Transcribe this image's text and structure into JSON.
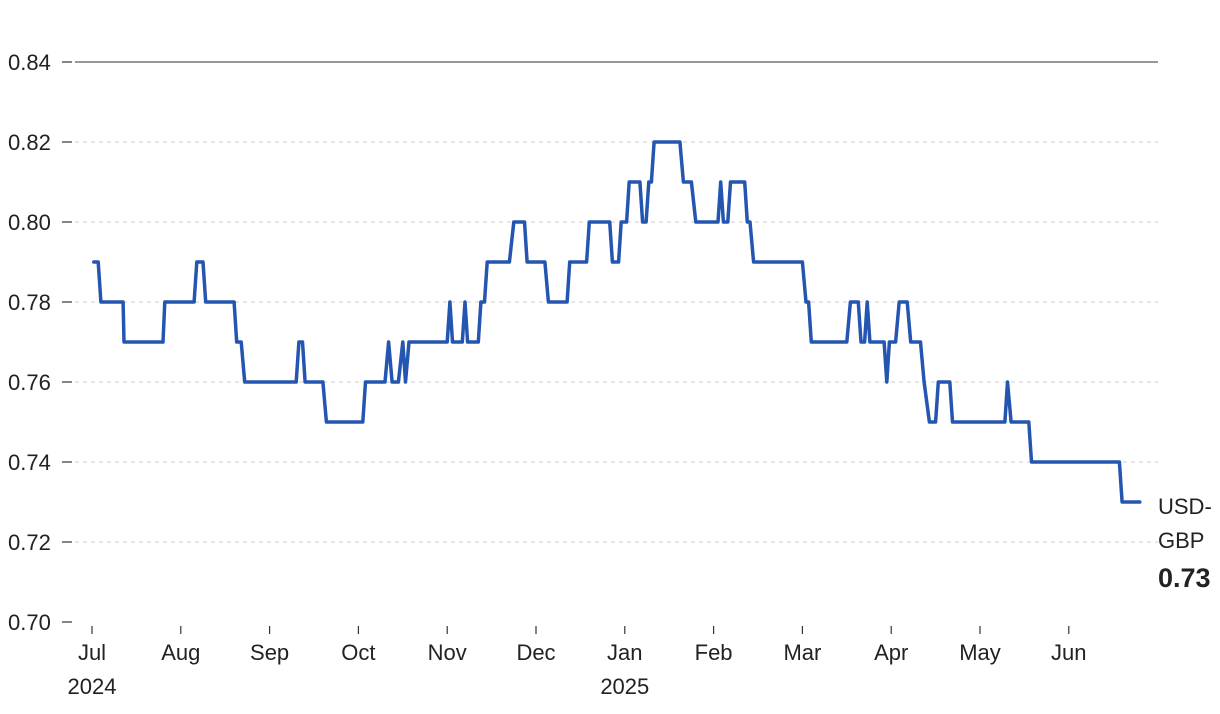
{
  "chart_data": {
    "type": "line",
    "title": "",
    "xlabel": "",
    "ylabel": "",
    "ylim": [
      0.7,
      0.84
    ],
    "yticks": [
      "0.70",
      "0.72",
      "0.74",
      "0.76",
      "0.78",
      "0.80",
      "0.82",
      "0.84"
    ],
    "xlim": [
      0,
      12
    ],
    "xticks": [
      {
        "label": "Jul",
        "year": "2024"
      },
      {
        "label": "Aug",
        "year": ""
      },
      {
        "label": "Sep",
        "year": ""
      },
      {
        "label": "Oct",
        "year": ""
      },
      {
        "label": "Nov",
        "year": ""
      },
      {
        "label": "Dec",
        "year": ""
      },
      {
        "label": "Jan",
        "year": "2025"
      },
      {
        "label": "Feb",
        "year": ""
      },
      {
        "label": "Mar",
        "year": ""
      },
      {
        "label": "Apr",
        "year": ""
      },
      {
        "label": "May",
        "year": ""
      },
      {
        "label": "Jun",
        "year": ""
      }
    ],
    "grid": true,
    "series": [
      {
        "name": "USD-GBP",
        "color": "#2455b0",
        "end_value": "0.73",
        "points": [
          [
            0.02,
            0.79
          ],
          [
            0.07,
            0.79
          ],
          [
            0.1,
            0.78
          ],
          [
            0.35,
            0.78
          ],
          [
            0.36,
            0.77
          ],
          [
            0.8,
            0.77
          ],
          [
            0.82,
            0.78
          ],
          [
            1.15,
            0.78
          ],
          [
            1.18,
            0.79
          ],
          [
            1.25,
            0.79
          ],
          [
            1.28,
            0.78
          ],
          [
            1.6,
            0.78
          ],
          [
            1.63,
            0.77
          ],
          [
            1.68,
            0.77
          ],
          [
            1.72,
            0.76
          ],
          [
            2.3,
            0.76
          ],
          [
            2.33,
            0.77
          ],
          [
            2.37,
            0.77
          ],
          [
            2.4,
            0.76
          ],
          [
            2.6,
            0.76
          ],
          [
            2.64,
            0.75
          ],
          [
            3.05,
            0.75
          ],
          [
            3.08,
            0.76
          ],
          [
            3.3,
            0.76
          ],
          [
            3.34,
            0.77
          ],
          [
            3.38,
            0.76
          ],
          [
            3.45,
            0.76
          ],
          [
            3.5,
            0.77
          ],
          [
            3.53,
            0.76
          ],
          [
            3.57,
            0.77
          ],
          [
            4.0,
            0.77
          ],
          [
            4.03,
            0.78
          ],
          [
            4.06,
            0.77
          ],
          [
            4.17,
            0.77
          ],
          [
            4.2,
            0.78
          ],
          [
            4.23,
            0.77
          ],
          [
            4.35,
            0.77
          ],
          [
            4.38,
            0.78
          ],
          [
            4.42,
            0.78
          ],
          [
            4.45,
            0.79
          ],
          [
            4.7,
            0.79
          ],
          [
            4.75,
            0.8
          ],
          [
            4.87,
            0.8
          ],
          [
            4.9,
            0.79
          ],
          [
            5.1,
            0.79
          ],
          [
            5.14,
            0.78
          ],
          [
            5.35,
            0.78
          ],
          [
            5.38,
            0.79
          ],
          [
            5.57,
            0.79
          ],
          [
            5.6,
            0.8
          ],
          [
            5.83,
            0.8
          ],
          [
            5.86,
            0.79
          ],
          [
            5.93,
            0.79
          ],
          [
            5.96,
            0.8
          ],
          [
            6.02,
            0.8
          ],
          [
            6.05,
            0.81
          ],
          [
            6.17,
            0.81
          ],
          [
            6.2,
            0.8
          ],
          [
            6.24,
            0.8
          ],
          [
            6.27,
            0.81
          ],
          [
            6.3,
            0.81
          ],
          [
            6.33,
            0.82
          ],
          [
            6.62,
            0.82
          ],
          [
            6.66,
            0.81
          ],
          [
            6.75,
            0.81
          ],
          [
            6.8,
            0.8
          ],
          [
            7.05,
            0.8
          ],
          [
            7.08,
            0.81
          ],
          [
            7.11,
            0.8
          ],
          [
            7.16,
            0.8
          ],
          [
            7.19,
            0.81
          ],
          [
            7.35,
            0.81
          ],
          [
            7.38,
            0.8
          ],
          [
            7.41,
            0.8
          ],
          [
            7.45,
            0.79
          ],
          [
            8.0,
            0.79
          ],
          [
            8.04,
            0.78
          ],
          [
            8.07,
            0.78
          ],
          [
            8.1,
            0.77
          ],
          [
            8.5,
            0.77
          ],
          [
            8.54,
            0.78
          ],
          [
            8.63,
            0.78
          ],
          [
            8.66,
            0.77
          ],
          [
            8.7,
            0.77
          ],
          [
            8.73,
            0.78
          ],
          [
            8.76,
            0.77
          ],
          [
            8.92,
            0.77
          ],
          [
            8.95,
            0.76
          ],
          [
            8.98,
            0.77
          ],
          [
            9.05,
            0.77
          ],
          [
            9.09,
            0.78
          ],
          [
            9.18,
            0.78
          ],
          [
            9.22,
            0.77
          ],
          [
            9.33,
            0.77
          ],
          [
            9.37,
            0.76
          ],
          [
            9.43,
            0.75
          ],
          [
            9.5,
            0.75
          ],
          [
            9.53,
            0.76
          ],
          [
            9.66,
            0.76
          ],
          [
            9.69,
            0.75
          ],
          [
            10.28,
            0.75
          ],
          [
            10.31,
            0.76
          ],
          [
            10.35,
            0.75
          ],
          [
            10.55,
            0.75
          ],
          [
            10.58,
            0.74
          ],
          [
            11.57,
            0.74
          ],
          [
            11.6,
            0.73
          ],
          [
            11.8,
            0.73
          ]
        ]
      }
    ]
  }
}
